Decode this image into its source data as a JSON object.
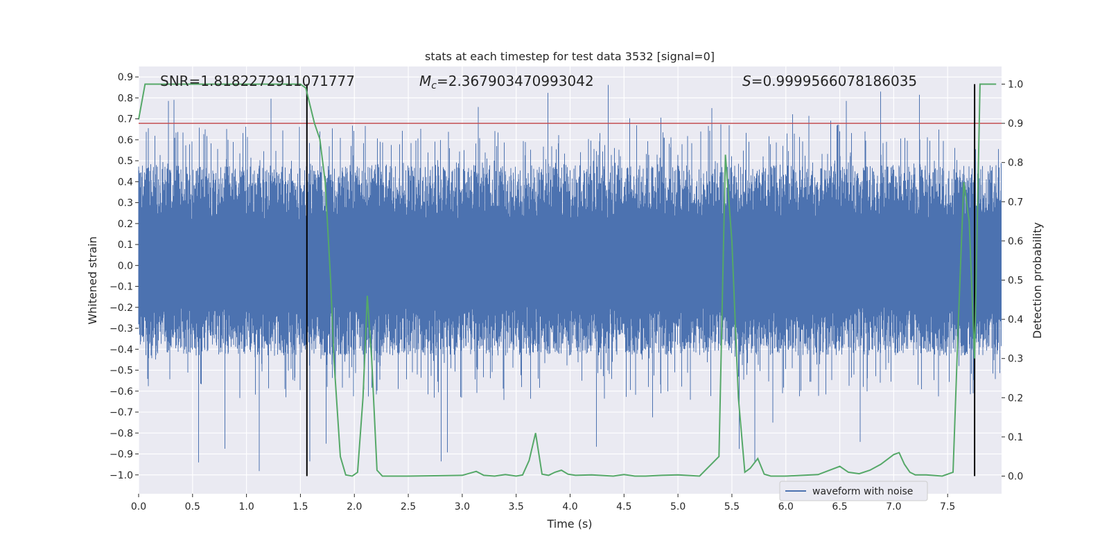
{
  "chart_data": {
    "type": "line",
    "title": "stats at each timestep for test data 3532 [signal=0]",
    "xlabel": "Time (s)",
    "ylabel_left": "Whitened strain",
    "ylabel_right": "Detection probability",
    "xlim": [
      0.0,
      8.0
    ],
    "ylim_left": [
      -1.09,
      0.95
    ],
    "ylim_right": [
      -0.045,
      1.045
    ],
    "x_ticks": [
      "0.0",
      "0.5",
      "1.0",
      "1.5",
      "2.0",
      "2.5",
      "3.0",
      "3.5",
      "4.0",
      "4.5",
      "5.0",
      "5.5",
      "6.0",
      "6.5",
      "7.0",
      "7.5"
    ],
    "y_ticks_left": [
      "0.9",
      "0.8",
      "0.7",
      "0.6",
      "0.5",
      "0.4",
      "0.3",
      "0.2",
      "0.1",
      "0.0",
      "−0.1",
      "−0.2",
      "−0.3",
      "−0.4",
      "−0.5",
      "−0.6",
      "−0.7",
      "−0.8",
      "−0.9",
      "−1.0"
    ],
    "y_ticks_right": [
      "1.0",
      "0.9",
      "0.8",
      "0.7",
      "0.6",
      "0.5",
      "0.4",
      "0.3",
      "0.2",
      "0.1",
      "0.0"
    ],
    "grid": true,
    "legend": {
      "location": "lower-right",
      "entries": [
        "waveform with noise"
      ]
    },
    "annotations": {
      "snr": "SNR=1.8182272911071777",
      "mc_symbol": "M",
      "mc_sub": "c",
      "mc_value": "=2.367903470993042",
      "s_symbol": "S",
      "s_value": "=0.9999566078186035"
    },
    "threshold_line": {
      "axis": "right",
      "value": 0.9,
      "color": "#c44e52"
    },
    "vertical_lines": [
      1.56,
      7.75
    ],
    "series": [
      {
        "name": "waveform with noise",
        "axis": "left",
        "color": "#4c72b0",
        "sample_rate_hz": 2048,
        "duration_s": 8.0,
        "envelope_high": 0.48,
        "envelope_low": -0.43,
        "peak_high": 0.87,
        "peak_low": -1.0
      },
      {
        "name": "detection probability",
        "axis": "right",
        "color": "#55a868",
        "x": [
          0.0,
          0.06,
          0.5,
          1.0,
          1.5,
          1.55,
          1.63,
          1.68,
          1.73,
          1.78,
          1.81,
          1.87,
          1.92,
          1.98,
          2.03,
          2.08,
          2.12,
          2.16,
          2.21,
          2.26,
          2.5,
          3.0,
          3.13,
          3.2,
          3.3,
          3.4,
          3.5,
          3.56,
          3.62,
          3.68,
          3.74,
          3.8,
          3.86,
          3.92,
          3.98,
          4.05,
          4.2,
          4.4,
          4.5,
          4.6,
          4.7,
          4.85,
          5.0,
          5.2,
          5.38,
          5.44,
          5.5,
          5.56,
          5.62,
          5.67,
          5.74,
          5.8,
          5.86,
          6.0,
          6.3,
          6.5,
          6.58,
          6.68,
          6.78,
          6.88,
          7.0,
          7.05,
          7.1,
          7.15,
          7.2,
          7.3,
          7.45,
          7.55,
          7.6,
          7.65,
          7.7,
          7.75,
          7.8,
          7.85,
          7.95
        ],
        "y": [
          0.91,
          1.0,
          1.0,
          1.0,
          1.0,
          0.99,
          0.9,
          0.86,
          0.75,
          0.5,
          0.3,
          0.05,
          0.003,
          0.0,
          0.01,
          0.2,
          0.46,
          0.3,
          0.015,
          0.0,
          0.0,
          0.002,
          0.012,
          0.002,
          0.0,
          0.004,
          0.0,
          0.003,
          0.04,
          0.11,
          0.005,
          0.002,
          0.01,
          0.015,
          0.005,
          0.002,
          0.003,
          0.0,
          0.004,
          0.0,
          0.0,
          0.002,
          0.003,
          0.0,
          0.05,
          0.82,
          0.6,
          0.2,
          0.01,
          0.02,
          0.045,
          0.005,
          0.0,
          0.0,
          0.004,
          0.025,
          0.01,
          0.006,
          0.015,
          0.03,
          0.055,
          0.06,
          0.03,
          0.01,
          0.003,
          0.003,
          0.0,
          0.01,
          0.4,
          0.75,
          0.65,
          0.3,
          1.0,
          1.0,
          1.0
        ]
      }
    ]
  }
}
